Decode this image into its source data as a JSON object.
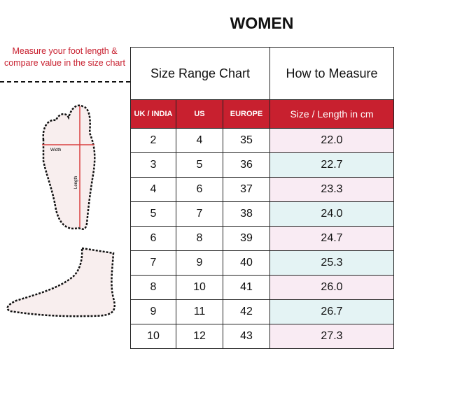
{
  "title": "WOMEN",
  "note": "Measure your foot length & compare value in the size chart",
  "diagram": {
    "width_label": "Width",
    "length_label": "Length"
  },
  "headers": {
    "size_range": "Size Range Chart",
    "how_to": "How to Measure"
  },
  "columns": [
    "UK / INDIA",
    "US",
    "EUROPE",
    "Size / Length in cm"
  ],
  "rows": [
    [
      "2",
      "4",
      "35",
      "22.0"
    ],
    [
      "3",
      "5",
      "36",
      "22.7"
    ],
    [
      "4",
      "6",
      "37",
      "23.3"
    ],
    [
      "5",
      "7",
      "38",
      "24.0"
    ],
    [
      "6",
      "8",
      "39",
      "24.7"
    ],
    [
      "7",
      "9",
      "40",
      "25.3"
    ],
    [
      "8",
      "10",
      "41",
      "26.0"
    ],
    [
      "9",
      "11",
      "42",
      "26.7"
    ],
    [
      "10",
      "12",
      "43",
      "27.3"
    ]
  ],
  "colors": {
    "header_red": "#c8202f",
    "row_pink": "#f9ebf3",
    "row_cyan": "#e4f3f4"
  }
}
